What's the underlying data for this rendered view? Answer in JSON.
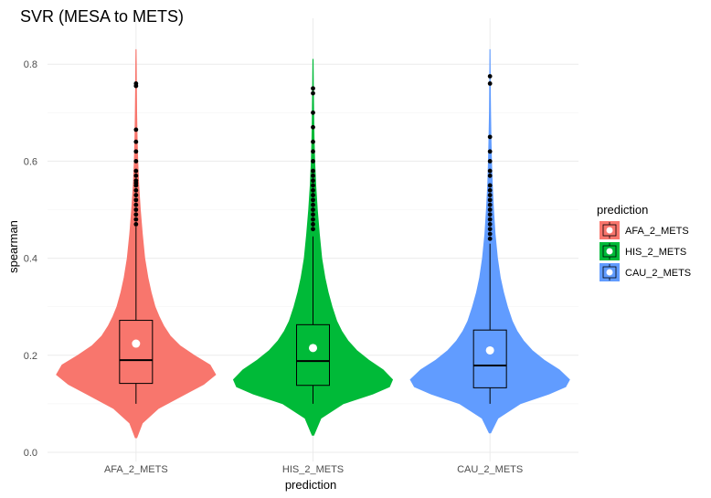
{
  "chart_data": {
    "type": "violin",
    "title": "SVR (MESA to METS)",
    "xlabel": "prediction",
    "ylabel": "spearman",
    "ylim": [
      0.0,
      0.85
    ],
    "y_ticks": [
      0.0,
      0.2,
      0.4,
      0.6,
      0.8
    ],
    "y_tick_labels": [
      "0.0",
      "0.2",
      "0.4",
      "0.6",
      "0.8"
    ],
    "grid": true,
    "legend_title": "prediction",
    "legend_position": "right",
    "categories": [
      "AFA_2_METS",
      "HIS_2_METS",
      "CAU_2_METS"
    ],
    "series": [
      {
        "name": "AFA_2_METS",
        "color": "#F8766D",
        "violin_min": 0.03,
        "violin_max": 0.83,
        "density_profile": [
          [
            0.03,
            0.01
          ],
          [
            0.06,
            0.08
          ],
          [
            0.09,
            0.28
          ],
          [
            0.12,
            0.62
          ],
          [
            0.14,
            0.85
          ],
          [
            0.16,
            1.0
          ],
          [
            0.18,
            0.93
          ],
          [
            0.2,
            0.73
          ],
          [
            0.22,
            0.55
          ],
          [
            0.24,
            0.43
          ],
          [
            0.26,
            0.35
          ],
          [
            0.28,
            0.29
          ],
          [
            0.3,
            0.24
          ],
          [
            0.33,
            0.19
          ],
          [
            0.36,
            0.15
          ],
          [
            0.4,
            0.11
          ],
          [
            0.45,
            0.08
          ],
          [
            0.5,
            0.055
          ],
          [
            0.55,
            0.035
          ],
          [
            0.6,
            0.022
          ],
          [
            0.65,
            0.014
          ],
          [
            0.7,
            0.009
          ],
          [
            0.75,
            0.006
          ],
          [
            0.8,
            0.004
          ],
          [
            0.83,
            0.002
          ]
        ],
        "box": {
          "whisker_low": 0.1,
          "q1": 0.142,
          "median": 0.19,
          "q3": 0.272,
          "whisker_high": 0.465
        },
        "mean": 0.224,
        "outliers": [
          0.47,
          0.48,
          0.49,
          0.5,
          0.51,
          0.52,
          0.53,
          0.54,
          0.55,
          0.555,
          0.56,
          0.57,
          0.58,
          0.6,
          0.62,
          0.64,
          0.665,
          0.755,
          0.76
        ]
      },
      {
        "name": "HIS_2_METS",
        "color": "#00BA38",
        "violin_min": 0.035,
        "violin_max": 0.81,
        "density_profile": [
          [
            0.035,
            0.01
          ],
          [
            0.07,
            0.1
          ],
          [
            0.1,
            0.38
          ],
          [
            0.12,
            0.75
          ],
          [
            0.135,
            0.96
          ],
          [
            0.15,
            1.0
          ],
          [
            0.17,
            0.88
          ],
          [
            0.19,
            0.7
          ],
          [
            0.21,
            0.55
          ],
          [
            0.23,
            0.44
          ],
          [
            0.25,
            0.36
          ],
          [
            0.27,
            0.3
          ],
          [
            0.3,
            0.24
          ],
          [
            0.33,
            0.19
          ],
          [
            0.36,
            0.15
          ],
          [
            0.4,
            0.11
          ],
          [
            0.45,
            0.08
          ],
          [
            0.5,
            0.055
          ],
          [
            0.55,
            0.035
          ],
          [
            0.6,
            0.022
          ],
          [
            0.65,
            0.014
          ],
          [
            0.7,
            0.009
          ],
          [
            0.75,
            0.006
          ],
          [
            0.81,
            0.002
          ]
        ],
        "box": {
          "whisker_low": 0.1,
          "q1": 0.138,
          "median": 0.188,
          "q3": 0.263,
          "whisker_high": 0.445
        },
        "mean": 0.215,
        "outliers": [
          0.46,
          0.47,
          0.48,
          0.49,
          0.5,
          0.51,
          0.52,
          0.53,
          0.54,
          0.55,
          0.56,
          0.57,
          0.58,
          0.6,
          0.62,
          0.64,
          0.67,
          0.7,
          0.74,
          0.75
        ]
      },
      {
        "name": "CAU_2_METS",
        "color": "#619CFF",
        "violin_min": 0.04,
        "violin_max": 0.83,
        "density_profile": [
          [
            0.04,
            0.01
          ],
          [
            0.07,
            0.1
          ],
          [
            0.1,
            0.38
          ],
          [
            0.12,
            0.74
          ],
          [
            0.135,
            0.95
          ],
          [
            0.15,
            1.0
          ],
          [
            0.17,
            0.87
          ],
          [
            0.19,
            0.68
          ],
          [
            0.21,
            0.53
          ],
          [
            0.23,
            0.42
          ],
          [
            0.25,
            0.34
          ],
          [
            0.27,
            0.28
          ],
          [
            0.3,
            0.22
          ],
          [
            0.33,
            0.17
          ],
          [
            0.36,
            0.13
          ],
          [
            0.4,
            0.095
          ],
          [
            0.45,
            0.065
          ],
          [
            0.5,
            0.045
          ],
          [
            0.55,
            0.03
          ],
          [
            0.6,
            0.02
          ],
          [
            0.65,
            0.013
          ],
          [
            0.7,
            0.008
          ],
          [
            0.75,
            0.005
          ],
          [
            0.83,
            0.002
          ]
        ],
        "box": {
          "whisker_low": 0.1,
          "q1": 0.133,
          "median": 0.179,
          "q3": 0.252,
          "whisker_high": 0.43
        },
        "mean": 0.21,
        "outliers": [
          0.44,
          0.45,
          0.46,
          0.47,
          0.48,
          0.49,
          0.5,
          0.51,
          0.52,
          0.53,
          0.54,
          0.55,
          0.57,
          0.58,
          0.6,
          0.62,
          0.65,
          0.76,
          0.775
        ]
      }
    ]
  }
}
